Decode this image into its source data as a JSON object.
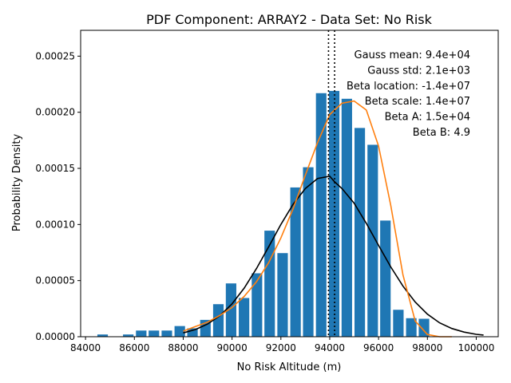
{
  "chart_data": {
    "type": "bar",
    "title": "PDF Component: ARRAY2 - Data Set: No Risk",
    "xlabel": "No Risk Altitude (m)",
    "ylabel": "Probability Density",
    "xlim": [
      83800,
      100900
    ],
    "ylim": [
      0,
      0.000273
    ],
    "x_ticks": [
      84000,
      86000,
      88000,
      90000,
      92000,
      94000,
      96000,
      98000,
      100000
    ],
    "x_tick_labels": [
      "84000",
      "86000",
      "88000",
      "90000",
      "92000",
      "94000",
      "96000",
      "98000",
      "100000"
    ],
    "y_ticks": [
      0,
      5e-05,
      0.0001,
      0.00015,
      0.0002,
      0.00025
    ],
    "y_tick_labels": [
      "0.00000",
      "0.00005",
      "0.00010",
      "0.00015",
      "0.00020",
      "0.00025"
    ],
    "bar_width": 430,
    "bar_color": "#1f77b4",
    "bars": {
      "x": [
        84700,
        85750,
        86280,
        86800,
        87330,
        87860,
        88380,
        88910,
        89440,
        89960,
        90490,
        91020,
        91540,
        92070,
        92600,
        93120,
        93650,
        94180,
        94700,
        95230,
        95760,
        96280,
        96810,
        97340,
        97860
      ],
      "values": [
        2e-06,
        2e-06,
        5.5e-06,
        5.5e-06,
        5.5e-06,
        9.5e-06,
        7.5e-06,
        1.5e-05,
        2.9e-05,
        4.75e-05,
        3.45e-05,
        5.65e-05,
        9.45e-05,
        7.45e-05,
        0.000133,
        0.000151,
        0.000217,
        0.000219,
        0.000212,
        0.000186,
        0.000171,
        0.0001035,
        2.4e-05,
        1.65e-05,
        1.6e-05
      ]
    },
    "gauss_curve": {
      "color": "#000000",
      "x": [
        88000,
        88500,
        89000,
        89500,
        90000,
        90500,
        91000,
        91500,
        92000,
        92500,
        93000,
        93500,
        94000,
        94200,
        94500,
        95000,
        95500,
        96000,
        96500,
        97000,
        97500,
        98000,
        98500,
        99000,
        99500,
        100000,
        100300
      ],
      "values": [
        3.4e-06,
        6.4e-06,
        1.13e-05,
        1.87e-05,
        2.93e-05,
        4.34e-05,
        6.07e-05,
        8.01e-05,
        0.0001,
        0.000118,
        0.000132,
        0.000141,
        0.000143,
        0.000138,
        0.000132,
        0.000119,
        0.000101,
        8.14e-05,
        6.22e-05,
        4.51e-05,
        3.09e-05,
        2.01e-05,
        1.24e-05,
        7.3e-06,
        4.1e-06,
        2.1e-06,
        1.5e-06
      ]
    },
    "beta_curve": {
      "color": "#ff7f0e",
      "x": [
        88000,
        88500,
        89000,
        89500,
        90000,
        90500,
        91000,
        91500,
        92000,
        92500,
        93000,
        93500,
        94000,
        94500,
        95000,
        95500,
        96000,
        96500,
        97000,
        97500,
        98000,
        98500,
        99000
      ],
      "values": [
        5e-06,
        9e-06,
        1.3e-05,
        1.9e-05,
        2.6e-05,
        3.6e-05,
        4.9e-05,
        6.6e-05,
        8.8e-05,
        0.000114,
        0.000144,
        0.000173,
        0.000198,
        0.000208,
        0.00021,
        0.000202,
        0.00017,
        0.000117,
        5.5e-05,
        1.4e-05,
        2e-06,
        0.0,
        0.0
      ]
    },
    "vlines": [
      93950,
      94200
    ],
    "annotations": [
      "Gauss mean: 9.4e+04",
      "Gauss std: 2.1e+03",
      "Beta location: -1.4e+07",
      "Beta scale: 1.4e+07",
      "Beta A: 1.5e+04",
      "Beta B: 4.9"
    ],
    "legend": null,
    "grid": false
  }
}
